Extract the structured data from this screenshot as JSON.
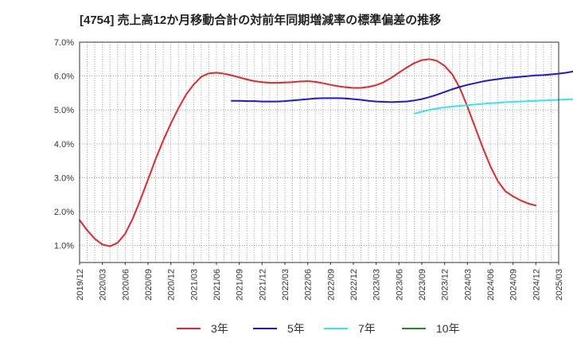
{
  "chart_data": {
    "type": "line",
    "title": "[4754]  売上高12か月移動合計の対前年同期増減率の標準偏差の推移",
    "ylim": [
      0.5,
      7.0
    ],
    "y_ticks": [
      1.0,
      2.0,
      3.0,
      4.0,
      5.0,
      6.0,
      7.0
    ],
    "y_tick_labels": [
      "1.0%",
      "2.0%",
      "3.0%",
      "4.0%",
      "5.0%",
      "6.0%",
      "7.0%"
    ],
    "x_tick_labels": [
      "2019/12",
      "2020/03",
      "2020/06",
      "2020/09",
      "2020/12",
      "2021/03",
      "2021/06",
      "2021/09",
      "2021/12",
      "2022/03",
      "2022/06",
      "2022/09",
      "2022/12",
      "2023/03",
      "2023/06",
      "2023/09",
      "2023/12",
      "2024/03",
      "2024/06",
      "2024/09",
      "2024/12",
      "2025/03"
    ],
    "x_start": "2019/12",
    "grid": true,
    "legend_position": "bottom",
    "series": [
      {
        "name": "3年",
        "color": "#e8262a",
        "start_month_index": 0,
        "values": [
          1.75,
          1.45,
          1.2,
          1.03,
          0.98,
          1.08,
          1.35,
          1.8,
          2.35,
          2.95,
          3.55,
          4.1,
          4.6,
          5.05,
          5.45,
          5.75,
          5.98,
          6.08,
          6.1,
          6.07,
          6.02,
          5.96,
          5.9,
          5.85,
          5.82,
          5.8,
          5.8,
          5.81,
          5.82,
          5.84,
          5.85,
          5.83,
          5.79,
          5.74,
          5.7,
          5.67,
          5.65,
          5.65,
          5.68,
          5.73,
          5.82,
          5.95,
          6.1,
          6.25,
          6.38,
          6.47,
          6.5,
          6.45,
          6.3,
          6.05,
          5.65,
          5.1,
          4.5,
          3.9,
          3.35,
          2.9,
          2.6,
          2.45,
          2.33,
          2.24,
          2.18
        ]
      },
      {
        "name": "5年",
        "color": "#1a1ad6",
        "start_month_index": 20,
        "values": [
          5.27,
          5.27,
          5.26,
          5.26,
          5.25,
          5.25,
          5.25,
          5.26,
          5.28,
          5.3,
          5.32,
          5.34,
          5.35,
          5.35,
          5.35,
          5.34,
          5.32,
          5.3,
          5.27,
          5.25,
          5.24,
          5.23,
          5.24,
          5.25,
          5.28,
          5.32,
          5.38,
          5.45,
          5.53,
          5.61,
          5.68,
          5.74,
          5.79,
          5.84,
          5.88,
          5.91,
          5.94,
          5.96,
          5.98,
          6.0,
          6.02,
          6.03,
          6.05,
          6.07,
          6.1,
          6.14
        ]
      },
      {
        "name": "7年",
        "color": "#33e6ee",
        "start_month_index": 44,
        "values": [
          4.89,
          4.95,
          5.0,
          5.04,
          5.08,
          5.1,
          5.12,
          5.14,
          5.16,
          5.18,
          5.2,
          5.21,
          5.23,
          5.24,
          5.25,
          5.26,
          5.27,
          5.28,
          5.29,
          5.3,
          5.31,
          5.32
        ]
      },
      {
        "name": "10年",
        "color": "#228b22",
        "start_month_index": 0,
        "values": []
      }
    ]
  }
}
